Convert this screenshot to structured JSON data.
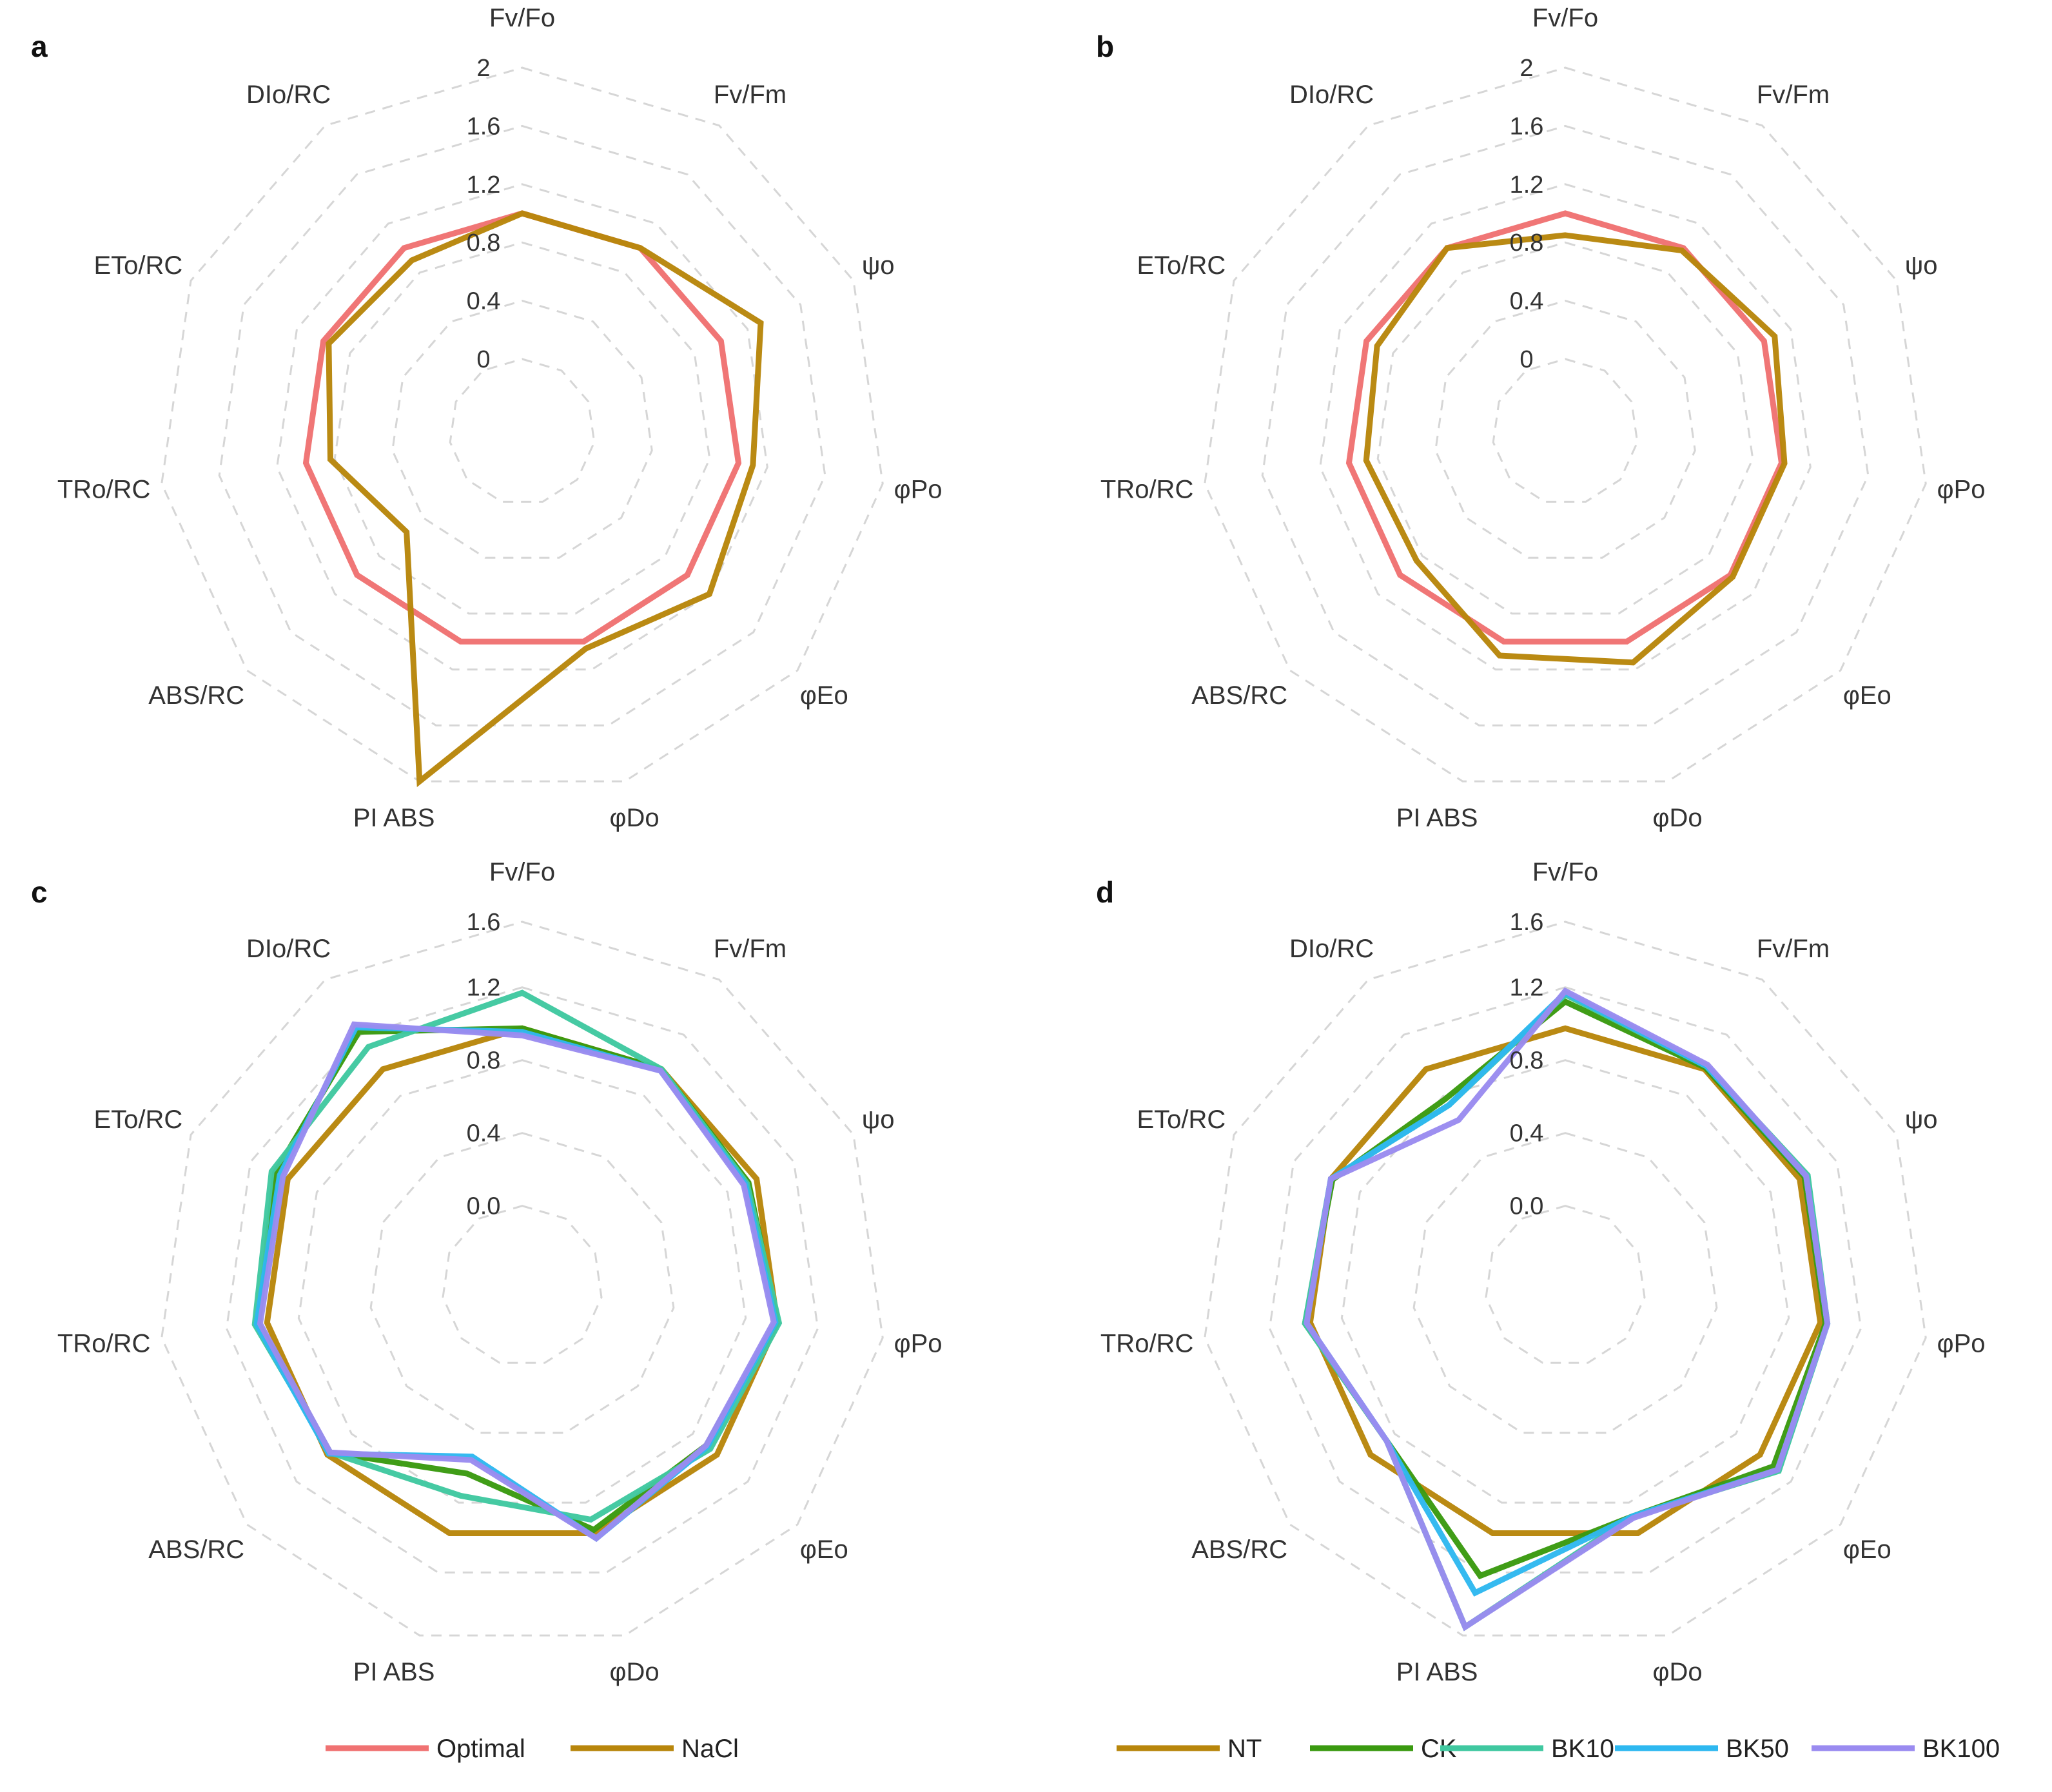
{
  "chart_data": [
    {
      "panel": "a",
      "type": "radar",
      "axes": [
        "Fv/Fo",
        "Fv/Fm",
        "ψo",
        "φPo",
        "φEo",
        "φDo",
        "PI ABS",
        "ABS/RC",
        "TRo/RC",
        "ETo/RC",
        "DIo/RC"
      ],
      "ticks": [
        "0",
        "0.4",
        "0.8",
        "1.2",
        "1.6",
        "2"
      ],
      "rmax": 2.0,
      "series": [
        {
          "name": "Optimal",
          "color": "#F07272",
          "values": [
            1.0,
            1.0,
            1.0,
            1.0,
            1.0,
            1.0,
            1.0,
            1.0,
            1.0,
            1.0,
            1.0
          ]
        },
        {
          "name": "NaCl",
          "color": "#B8860B",
          "values": [
            1.0,
            1.0,
            1.3,
            1.1,
            1.2,
            1.05,
            2.0,
            0.55,
            0.83,
            0.96,
            0.9
          ]
        }
      ]
    },
    {
      "panel": "b",
      "type": "radar",
      "axes": [
        "Fv/Fo",
        "Fv/Fm",
        "ψo",
        "φPo",
        "φEo",
        "φDo",
        "PI ABS",
        "ABS/RC",
        "TRo/RC",
        "ETo/RC",
        "DIo/RC"
      ],
      "ticks": [
        "0",
        "0.4",
        "0.8",
        "1.2",
        "1.6",
        "2"
      ],
      "rmax": 2.0,
      "series": [
        {
          "name": "Optimal",
          "color": "#F07272",
          "values": [
            1.0,
            1.0,
            1.0,
            1.0,
            1.0,
            1.0,
            1.0,
            1.0,
            1.0,
            1.0,
            1.0
          ]
        },
        {
          "name": "NaCl",
          "color": "#B8860B",
          "values": [
            0.85,
            0.98,
            1.08,
            1.02,
            1.02,
            1.15,
            1.1,
            0.85,
            0.88,
            0.92,
            1.0
          ]
        }
      ]
    },
    {
      "panel": "c",
      "type": "radar",
      "axes": [
        "Fv/Fo",
        "Fv/Fm",
        "ψo",
        "φPo",
        "φEo",
        "φDo",
        "PI ABS",
        "ABS/RC",
        "TRo/RC",
        "ETo/RC",
        "DIo/RC"
      ],
      "ticks": [
        "0.0",
        "0.4",
        "0.8",
        "1.2",
        "1.6"
      ],
      "rmax": 1.6,
      "series": [
        {
          "name": "NT",
          "color": "#B8860B",
          "values": [
            1.0,
            1.0,
            1.0,
            1.0,
            1.0,
            1.0,
            1.0,
            1.0,
            1.0,
            1.0,
            1.0
          ]
        },
        {
          "name": "CK",
          "color": "#3A9A10",
          "values": [
            1.0,
            1.0,
            0.95,
            1.0,
            0.92,
            0.98,
            0.65,
            0.98,
            1.05,
            1.08,
            1.25
          ]
        },
        {
          "name": "BK10",
          "color": "#40C8A0",
          "values": [
            1.2,
            1.0,
            0.94,
            1.01,
            0.95,
            0.92,
            0.78,
            0.98,
            1.07,
            1.1,
            1.15
          ]
        },
        {
          "name": "BK50",
          "color": "#2EB8F0",
          "values": [
            0.98,
            0.99,
            0.93,
            0.99,
            0.93,
            1.03,
            0.55,
            0.99,
            1.06,
            1.05,
            1.28
          ]
        },
        {
          "name": "BK100",
          "color": "#9A8BF0",
          "values": [
            0.96,
            0.99,
            0.92,
            0.98,
            0.92,
            1.03,
            0.57,
            0.98,
            1.04,
            1.03,
            1.3
          ]
        }
      ]
    },
    {
      "panel": "d",
      "type": "radar",
      "axes": [
        "Fv/Fo",
        "Fv/Fm",
        "ψo",
        "φPo",
        "φEo",
        "φDo",
        "PI ABS",
        "ABS/RC",
        "TRo/RC",
        "ETo/RC",
        "DIo/RC"
      ],
      "ticks": [
        "0.0",
        "0.4",
        "0.8",
        "1.2",
        "1.6"
      ],
      "rmax": 1.6,
      "series": [
        {
          "name": "NT",
          "color": "#B8860B",
          "values": [
            1.0,
            1.0,
            1.0,
            1.0,
            1.0,
            1.0,
            1.0,
            1.0,
            1.0,
            1.0,
            1.0
          ]
        },
        {
          "name": "CK",
          "color": "#3A9A10",
          "values": [
            1.15,
            1.01,
            1.03,
            1.03,
            1.1,
            0.9,
            1.25,
            0.88,
            1.03,
            0.99,
            0.8
          ]
        },
        {
          "name": "BK10",
          "color": "#40C8A0",
          "values": [
            1.19,
            1.02,
            1.05,
            1.04,
            1.14,
            0.9,
            1.55,
            0.88,
            1.03,
            1.0,
            0.76
          ]
        },
        {
          "name": "BK50",
          "color": "#2EB8F0",
          "values": [
            1.2,
            1.02,
            1.04,
            1.04,
            1.13,
            0.9,
            1.35,
            0.88,
            1.02,
            1.0,
            0.76
          ]
        },
        {
          "name": "BK100",
          "color": "#9A8BF0",
          "values": [
            1.21,
            1.03,
            1.04,
            1.04,
            1.13,
            0.91,
            1.55,
            0.88,
            1.02,
            1.0,
            0.66
          ]
        }
      ]
    }
  ],
  "legends": {
    "top": [
      {
        "name": "Optimal",
        "color": "#F07272"
      },
      {
        "name": "NaCl",
        "color": "#B8860B"
      }
    ],
    "bottom": [
      {
        "name": "NT",
        "color": "#B8860B"
      },
      {
        "name": "CK",
        "color": "#3A9A10"
      },
      {
        "name": "BK10",
        "color": "#40C8A0"
      },
      {
        "name": "BK50",
        "color": "#2EB8F0"
      },
      {
        "name": "BK100",
        "color": "#9A8BF0"
      }
    ]
  }
}
